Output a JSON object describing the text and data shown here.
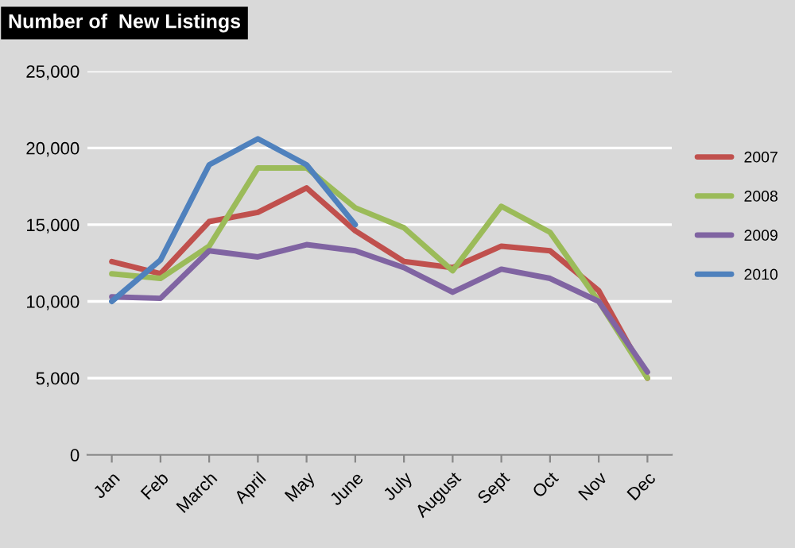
{
  "chart_data": {
    "type": "line",
    "title": "Number of  New Listings",
    "categories": [
      "Jan",
      "Feb",
      "March",
      "April",
      "May",
      "June",
      "July",
      "August",
      "Sept",
      "Oct",
      "Nov",
      "Dec"
    ],
    "series": [
      {
        "name": "2007",
        "color": "#c0504d",
        "values": [
          12600,
          11800,
          15200,
          15800,
          17400,
          14600,
          12600,
          12200,
          13600,
          13300,
          10700,
          5000
        ]
      },
      {
        "name": "2008",
        "color": "#9bbb59",
        "values": [
          11800,
          11500,
          13600,
          18700,
          18700,
          16100,
          14800,
          12000,
          16200,
          14500,
          10000,
          5000
        ]
      },
      {
        "name": "2009",
        "color": "#8064a2",
        "values": [
          10300,
          10200,
          13300,
          12900,
          13700,
          13300,
          12200,
          10600,
          12100,
          11500,
          10000,
          5400
        ]
      },
      {
        "name": "2010",
        "color": "#4f81bd",
        "values": [
          10000,
          12700,
          18900,
          20600,
          18900,
          15000,
          null,
          null,
          null,
          null,
          null,
          null
        ]
      }
    ],
    "ylim": [
      0,
      25000
    ],
    "yticks": [
      {
        "value": 0,
        "label": "0"
      },
      {
        "value": 5000,
        "label": "5,000"
      },
      {
        "value": 10000,
        "label": "10,000"
      },
      {
        "value": 15000,
        "label": "15,000"
      },
      {
        "value": 20000,
        "label": "20,000"
      },
      {
        "value": 25000,
        "label": "25,000"
      }
    ],
    "grid": "y",
    "legend": "right",
    "marker": "none",
    "line_style": "solid"
  }
}
